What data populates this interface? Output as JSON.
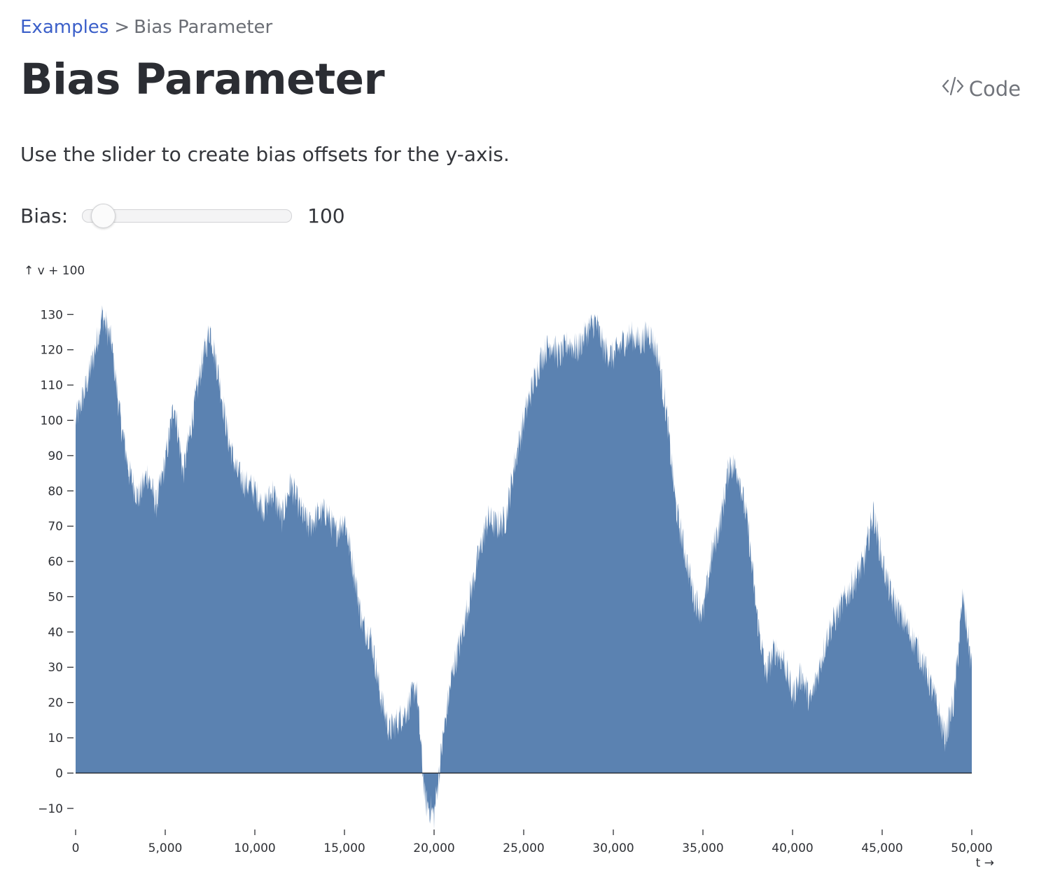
{
  "breadcrumb": {
    "parent": "Examples",
    "separator": ">",
    "current": "Bias Parameter"
  },
  "title": "Bias Parameter",
  "code_link": {
    "label": "Code",
    "icon": "code-icon"
  },
  "description": "Use the slider to create bias offsets for the y-axis.",
  "control": {
    "label": "Bias:",
    "value": "100",
    "value_fraction": 0.0
  },
  "colors": {
    "area": "#5b82b1",
    "link": "#3b5fc9"
  },
  "chart_data": {
    "type": "area",
    "title": "",
    "ylabel": "↑ v + 100",
    "xlabel": "t →",
    "xlim": [
      0,
      50000
    ],
    "ylim": [
      -15,
      137
    ],
    "yticks": [
      -10,
      0,
      10,
      20,
      30,
      40,
      50,
      60,
      70,
      80,
      90,
      100,
      110,
      120,
      130
    ],
    "ytick_labels": [
      "−10",
      "0",
      "10",
      "20",
      "30",
      "40",
      "50",
      "60",
      "70",
      "80",
      "90",
      "100",
      "110",
      "120",
      "130"
    ],
    "xticks": [
      0,
      5000,
      10000,
      15000,
      20000,
      25000,
      30000,
      35000,
      40000,
      45000,
      50000
    ],
    "xtick_labels": [
      "0",
      "5,000",
      "10,000",
      "15,000",
      "20,000",
      "25,000",
      "30,000",
      "35,000",
      "40,000",
      "45,000",
      "50,000"
    ],
    "grid": false,
    "baseline": 0,
    "series": [
      {
        "x": [
          0,
          500,
          1000,
          1500,
          2000,
          2500,
          3000,
          3500,
          4000,
          4500,
          5000,
          5500,
          6000,
          6500,
          7000,
          7500,
          8000,
          8500,
          9000,
          9500,
          10000,
          10500,
          11000,
          11500,
          12000,
          12500,
          13000,
          13500,
          14000,
          14500,
          15000,
          15500,
          16000,
          16500,
          17000,
          17500,
          18000,
          18500,
          19000,
          19500,
          20000,
          20500,
          21000,
          21500,
          22000,
          22500,
          23000,
          23500,
          24000,
          24500,
          25000,
          25500,
          26000,
          26500,
          27000,
          27500,
          28000,
          28500,
          29000,
          29500,
          30000,
          30500,
          31000,
          31500,
          32000,
          32500,
          33000,
          33500,
          34000,
          34500,
          35000,
          35500,
          36000,
          36500,
          37000,
          37500,
          38000,
          38500,
          39000,
          39500,
          40000,
          40500,
          41000,
          41500,
          42000,
          42500,
          43000,
          43500,
          44000,
          44500,
          45000,
          45500,
          46000,
          46500,
          47000,
          47500,
          48000,
          48500,
          49000,
          49500,
          50000
        ],
        "y": [
          100,
          108,
          118,
          130,
          122,
          100,
          85,
          78,
          85,
          76,
          88,
          105,
          85,
          100,
          115,
          126,
          112,
          95,
          85,
          82,
          80,
          75,
          80,
          72,
          82,
          75,
          70,
          73,
          74,
          68,
          72,
          58,
          42,
          38,
          22,
          12,
          15,
          18,
          25,
          -8,
          -12,
          10,
          28,
          38,
          50,
          62,
          72,
          70,
          72,
          88,
          100,
          110,
          118,
          122,
          118,
          122,
          120,
          125,
          128,
          120,
          118,
          122,
          124,
          122,
          125,
          118,
          100,
          75,
          62,
          50,
          45,
          62,
          72,
          88,
          85,
          70,
          45,
          28,
          35,
          32,
          22,
          28,
          20,
          30,
          40,
          45,
          50,
          55,
          60,
          74,
          60,
          50,
          45,
          40,
          35,
          28,
          20,
          10,
          20,
          50,
          30
        ]
      }
    ]
  }
}
